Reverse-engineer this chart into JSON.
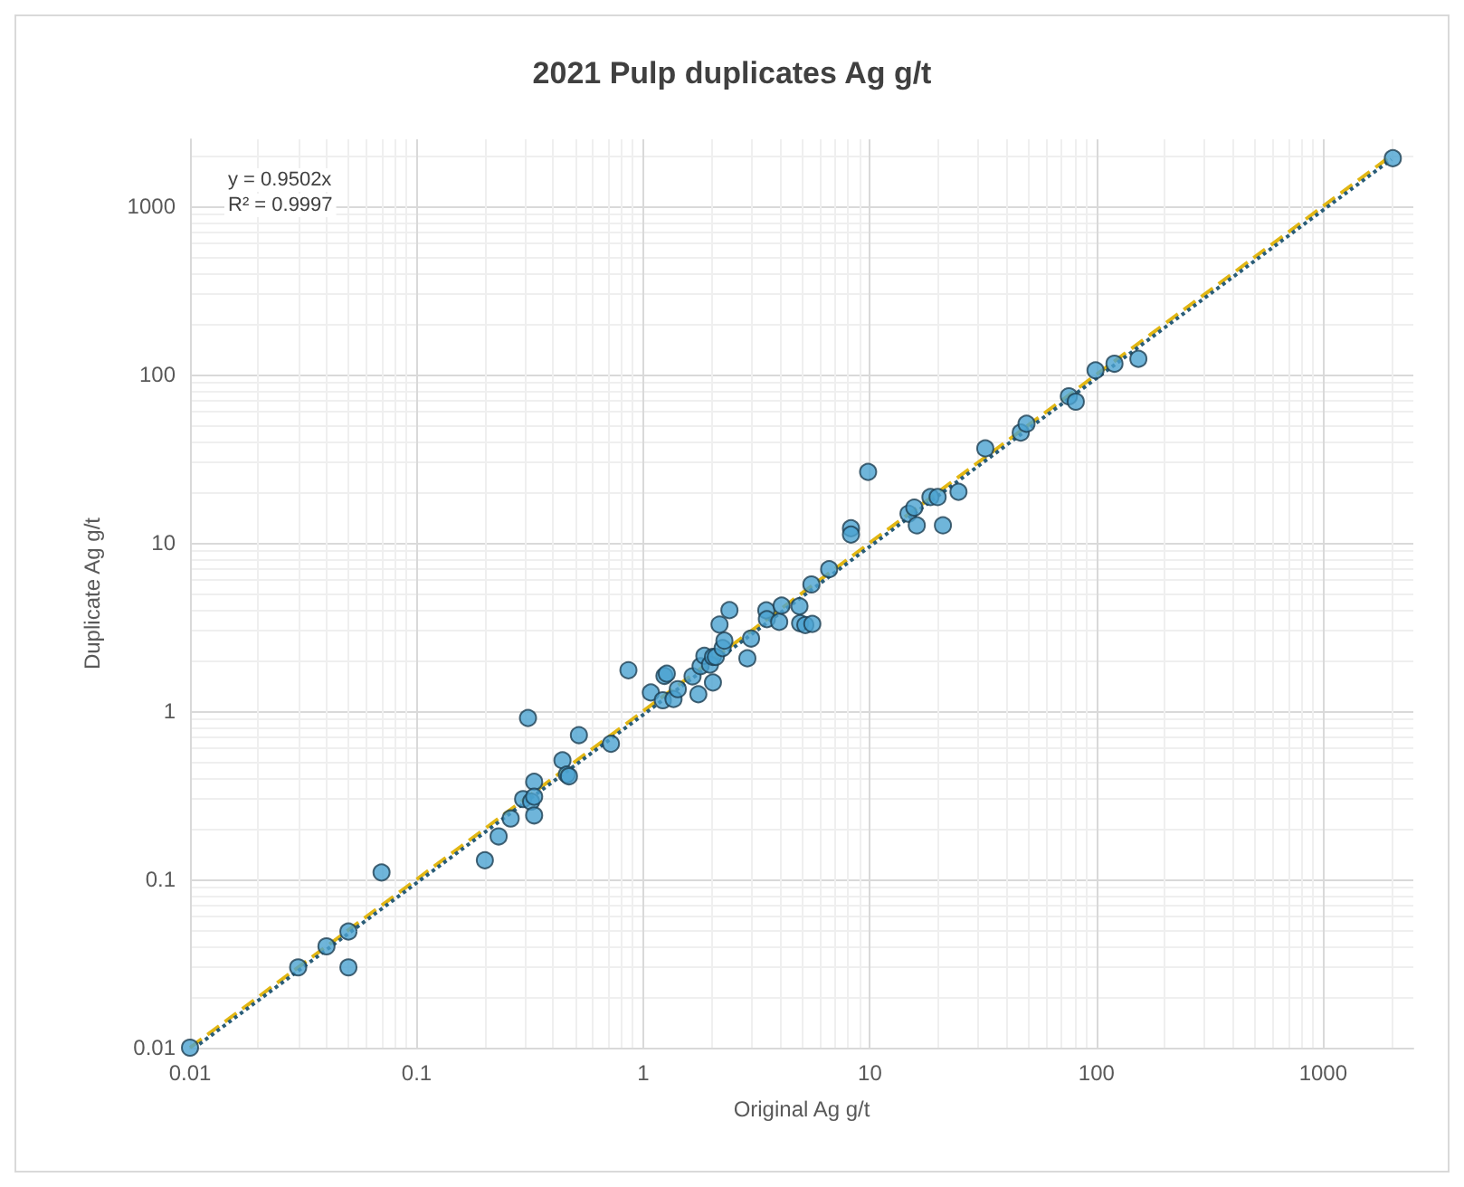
{
  "chart_data": {
    "type": "scatter",
    "title": "2021 Pulp duplicates Ag g/t",
    "xlabel": "Original Ag g/t",
    "ylabel": "Duplicate Ag g/t",
    "log": "xy",
    "xlim": [
      0.01,
      2500
    ],
    "ylim": [
      0.01,
      2500
    ],
    "xticks": [
      0.01,
      0.1,
      1,
      10,
      100,
      1000
    ],
    "yticks": [
      0.01,
      0.1,
      1,
      10,
      100,
      1000
    ],
    "grid": true,
    "marker": "circle",
    "annotations": [
      "y = 0.9502x",
      "R² = 0.9997"
    ],
    "series": [
      {
        "type": "line",
        "color": "#e2b714",
        "line_style": "dashed",
        "marker": "none",
        "x": [
          0.01,
          2000
        ],
        "values": [
          0.01,
          2000
        ]
      },
      {
        "type": "line",
        "color": "#2a5d78",
        "line_style": "dotted",
        "marker": "none",
        "x": [
          0.011,
          2000
        ],
        "values": [
          0.0105,
          1900
        ]
      },
      {
        "color": "#4ba3d1",
        "x": [
          0.01,
          0.03,
          0.04,
          0.05,
          0.05,
          0.07,
          0.2,
          0.23,
          0.26,
          0.295,
          0.31,
          0.32,
          0.33,
          0.33,
          0.33,
          0.44,
          0.46,
          0.47,
          0.52,
          0.72,
          0.86,
          1.08,
          1.22,
          1.24,
          1.27,
          1.36,
          1.42,
          1.65,
          1.75,
          1.79,
          1.86,
          1.97,
          2.03,
          2.03,
          2.09,
          2.17,
          2.24,
          2.28,
          2.4,
          2.88,
          2.99,
          3.49,
          3.51,
          3.98,
          4.08,
          4.89,
          4.92,
          5.19,
          5.57,
          5.52,
          6.61,
          8.25,
          8.25,
          9.82,
          14.8,
          15.7,
          16.1,
          18.5,
          19.9,
          21,
          24.6,
          32.3,
          46.3,
          49.1,
          75.5,
          81,
          99,
          120,
          153,
          2030
        ],
        "values": [
          0.01,
          0.03,
          0.04,
          0.049,
          0.03,
          0.11,
          0.13,
          0.18,
          0.23,
          0.3,
          0.91,
          0.29,
          0.38,
          0.31,
          0.24,
          0.51,
          0.42,
          0.41,
          0.72,
          0.64,
          1.75,
          1.29,
          1.16,
          1.62,
          1.67,
          1.18,
          1.35,
          1.61,
          1.26,
          1.85,
          2.13,
          1.89,
          1.48,
          2.1,
          2.1,
          3.27,
          2.37,
          2.62,
          3.98,
          2.06,
          2.7,
          3.97,
          3.52,
          3.39,
          4.24,
          4.2,
          3.33,
          3.25,
          3.3,
          5.66,
          6.97,
          12.2,
          11.2,
          26.4,
          14.9,
          16.2,
          12.7,
          18.7,
          18.7,
          12.7,
          20.1,
          36.4,
          45.2,
          51,
          74.3,
          69,
          106,
          116,
          124,
          1930
        ]
      }
    ]
  }
}
